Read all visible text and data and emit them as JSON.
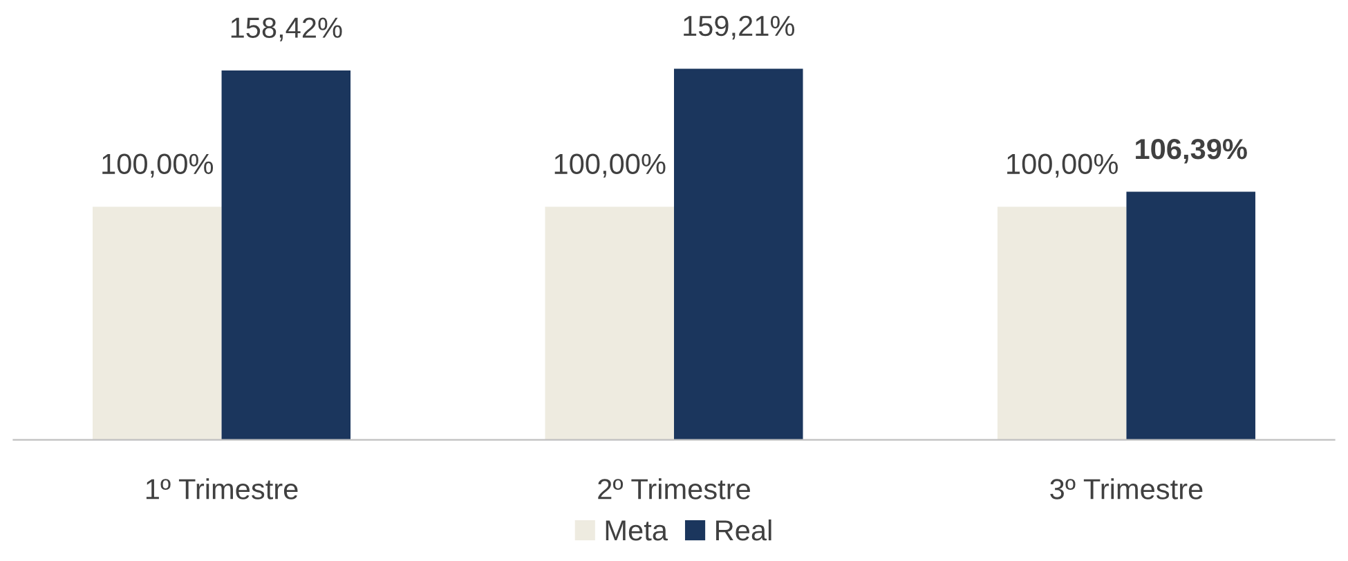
{
  "chart_data": {
    "type": "bar",
    "categories": [
      "1º Trimestre",
      "2º Trimestre",
      "3º Trimestre"
    ],
    "series": [
      {
        "name": "Meta",
        "color": "#eeebe0",
        "values": [
          100.0,
          100.0,
          100.0
        ],
        "value_labels": [
          "100,00%",
          "100,00%",
          "100,00%"
        ]
      },
      {
        "name": "Real",
        "color": "#1b365d",
        "values": [
          158.42,
          159.21,
          106.39
        ],
        "value_labels": [
          "158,42%",
          "159,21%",
          "106,39%"
        ]
      }
    ],
    "grid": false,
    "legend": "bottom"
  }
}
